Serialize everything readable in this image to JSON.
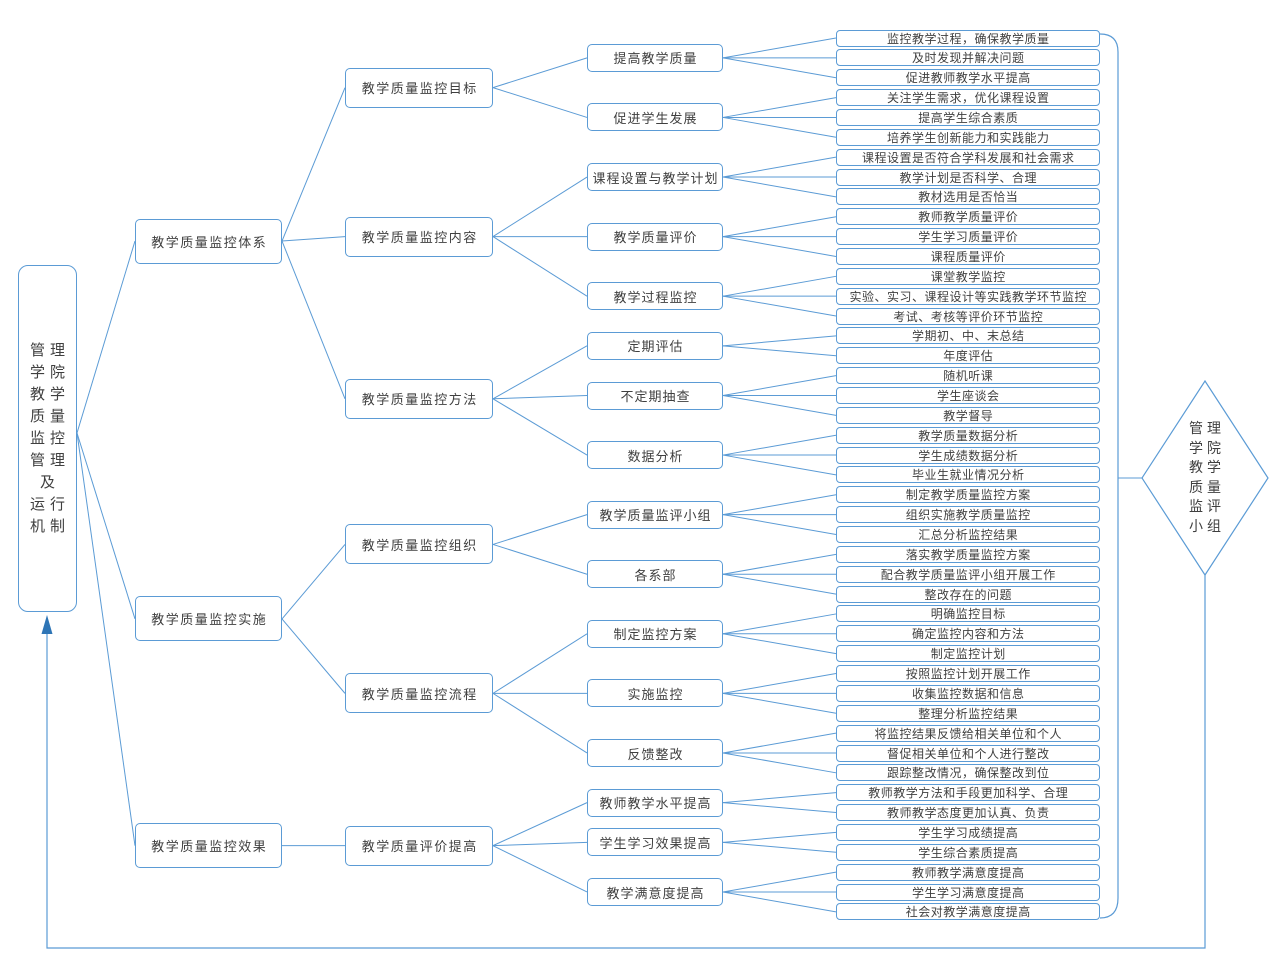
{
  "colors": {
    "accent": "#5B9BD5",
    "line": "#5B9BD5",
    "arrow": "#2E75B6",
    "text": "#3F3F3F",
    "background": "#FFFFFF"
  },
  "root": {
    "label": "管理学院教学质量监控管理及运行机制",
    "lines": [
      "管理",
      "学院",
      "教学",
      "质量",
      "监控",
      "管理",
      "及",
      "运行",
      "机制"
    ]
  },
  "diamond": {
    "label": "管理学院教学质量监评小组",
    "lines": [
      "管理",
      "学院",
      "教学",
      "质量",
      "监评",
      "小组"
    ]
  },
  "branches": [
    {
      "label": "教学质量监控体系",
      "children": [
        {
          "label": "教学质量监控目标",
          "children": [
            {
              "label": "提高教学质量",
              "leaves": [
                "监控教学过程，确保教学质量",
                "及时发现并解决问题",
                "促进教师教学水平提高"
              ]
            },
            {
              "label": "促进学生发展",
              "leaves": [
                "关注学生需求，优化课程设置",
                "提高学生综合素质",
                "培养学生创新能力和实践能力"
              ]
            }
          ]
        },
        {
          "label": "教学质量监控内容",
          "children": [
            {
              "label": "课程设置与教学计划",
              "leaves": [
                "课程设置是否符合学科发展和社会需求",
                "教学计划是否科学、合理",
                "教材选用是否恰当"
              ]
            },
            {
              "label": "教学质量评价",
              "leaves": [
                "教师教学质量评价",
                "学生学习质量评价",
                "课程质量评价"
              ]
            },
            {
              "label": "教学过程监控",
              "leaves": [
                "课堂教学监控",
                "实验、实习、课程设计等实践教学环节监控",
                "考试、考核等评价环节监控"
              ]
            }
          ]
        },
        {
          "label": "教学质量监控方法",
          "children": [
            {
              "label": "定期评估",
              "leaves": [
                "学期初、中、末总结",
                "年度评估"
              ]
            },
            {
              "label": "不定期抽查",
              "leaves": [
                "随机听课",
                "学生座谈会",
                "教学督导"
              ]
            },
            {
              "label": "数据分析",
              "leaves": [
                "教学质量数据分析",
                "学生成绩数据分析",
                "毕业生就业情况分析"
              ]
            }
          ]
        }
      ]
    },
    {
      "label": "教学质量监控实施",
      "children": [
        {
          "label": "教学质量监控组织",
          "children": [
            {
              "label": "教学质量监评小组",
              "leaves": [
                "制定教学质量监控方案",
                "组织实施教学质量监控",
                "汇总分析监控结果"
              ]
            },
            {
              "label": "各系部",
              "leaves": [
                "落实教学质量监控方案",
                "配合教学质量监评小组开展工作",
                "整改存在的问题"
              ]
            }
          ]
        },
        {
          "label": "教学质量监控流程",
          "children": [
            {
              "label": "制定监控方案",
              "leaves": [
                "明确监控目标",
                "确定监控内容和方法",
                "制定监控计划"
              ]
            },
            {
              "label": "实施监控",
              "leaves": [
                "按照监控计划开展工作",
                "收集监控数据和信息",
                "整理分析监控结果"
              ]
            },
            {
              "label": "反馈整改",
              "leaves": [
                "将监控结果反馈给相关单位和个人",
                "督促相关单位和个人进行整改",
                "跟踪整改情况，确保整改到位"
              ]
            }
          ]
        }
      ]
    },
    {
      "label": "教学质量监控效果",
      "children": [
        {
          "label": "教学质量评价提高",
          "children": [
            {
              "label": "教师教学水平提高",
              "leaves": [
                "教师教学方法和手段更加科学、合理",
                "教师教学态度更加认真、负责"
              ]
            },
            {
              "label": "学生学习效果提高",
              "leaves": [
                "学生学习成绩提高",
                "学生综合素质提高"
              ]
            },
            {
              "label": "教学满意度提高",
              "leaves": [
                "教师教学满意度提高",
                "学生学习满意度提高",
                "社会对教学满意度提高"
              ]
            }
          ]
        }
      ]
    }
  ]
}
